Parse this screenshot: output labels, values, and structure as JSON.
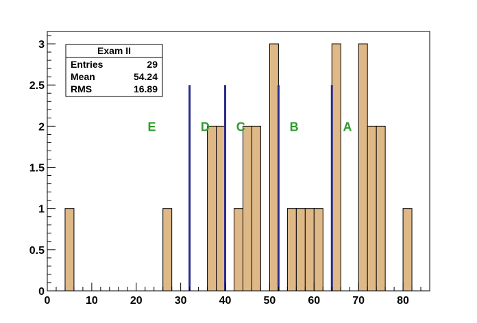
{
  "chart_data": {
    "type": "bar",
    "bin_width": 2,
    "x_range": [
      0,
      86
    ],
    "ylim": [
      0,
      3.15
    ],
    "x_ticks": [
      0,
      10,
      20,
      30,
      40,
      50,
      60,
      70,
      80
    ],
    "y_ticks": [
      0,
      0.5,
      1,
      1.5,
      2,
      2.5,
      3
    ],
    "x_tick_labels": [
      "0",
      "10",
      "20",
      "30",
      "40",
      "50",
      "60",
      "70",
      "80"
    ],
    "y_tick_labels": [
      "0",
      "0.5",
      "1",
      "1.5",
      "2",
      "2.5",
      "3"
    ],
    "bins": [
      {
        "x": 4,
        "count": 1
      },
      {
        "x": 26,
        "count": 1
      },
      {
        "x": 36,
        "count": 2
      },
      {
        "x": 38,
        "count": 2
      },
      {
        "x": 42,
        "count": 1
      },
      {
        "x": 44,
        "count": 2
      },
      {
        "x": 46,
        "count": 2
      },
      {
        "x": 50,
        "count": 3
      },
      {
        "x": 54,
        "count": 1
      },
      {
        "x": 56,
        "count": 1
      },
      {
        "x": 58,
        "count": 1
      },
      {
        "x": 60,
        "count": 1
      },
      {
        "x": 64,
        "count": 3
      },
      {
        "x": 70,
        "count": 3
      },
      {
        "x": 72,
        "count": 2
      },
      {
        "x": 74,
        "count": 2
      },
      {
        "x": 80,
        "count": 1
      }
    ],
    "cut_lines": [
      {
        "x": 32,
        "height": 2.5
      },
      {
        "x": 40,
        "height": 2.5
      },
      {
        "x": 52,
        "height": 2.5
      },
      {
        "x": 64,
        "height": 2.5
      }
    ],
    "grade_labels": [
      {
        "text": "E",
        "x": 23.5,
        "y": 2.0
      },
      {
        "text": "D",
        "x": 35.5,
        "y": 2.0
      },
      {
        "text": "C",
        "x": 43.5,
        "y": 2.0
      },
      {
        "text": "B",
        "x": 55.5,
        "y": 2.0
      },
      {
        "text": "A",
        "x": 67.5,
        "y": 2.0
      }
    ],
    "colors": {
      "fill": "#deb887",
      "line": "#2b2b8c",
      "grade_text": "#2e9a2e"
    },
    "stats": {
      "title": "Exam II",
      "rows": [
        {
          "label": "Entries",
          "value": "29"
        },
        {
          "label": "Mean",
          "value": "54.24"
        },
        {
          "label": "RMS",
          "value": "16.89"
        }
      ]
    }
  }
}
